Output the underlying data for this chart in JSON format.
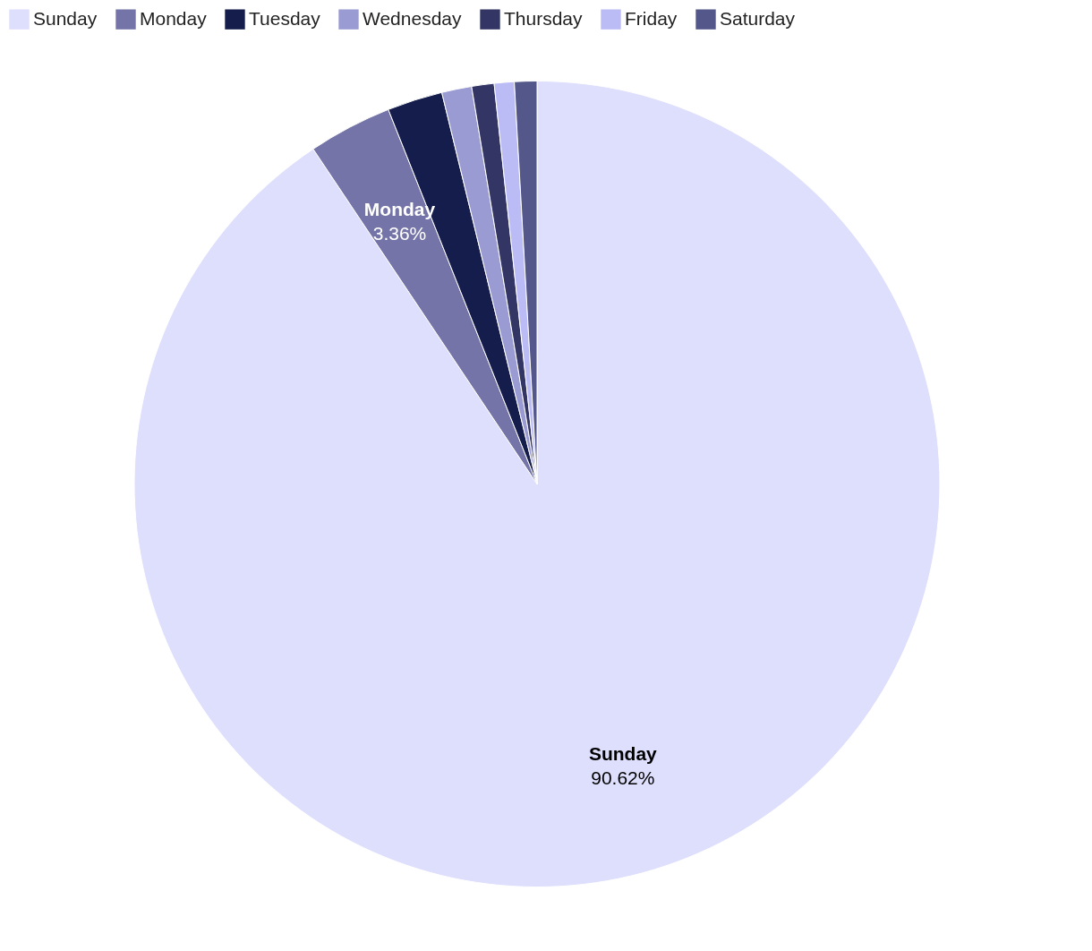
{
  "chart_data": {
    "type": "pie",
    "categories": [
      "Sunday",
      "Monday",
      "Tuesday",
      "Wednesday",
      "Thursday",
      "Friday",
      "Saturday"
    ],
    "values": [
      90.62,
      3.36,
      2.22,
      1.2,
      0.9,
      0.8,
      0.9
    ],
    "colors": [
      "#dedefd",
      "#7474a8",
      "#141d4c",
      "#9b9bd3",
      "#333564",
      "#bbbcf5",
      "#545789"
    ],
    "value_labels": [
      "90.62%",
      "3.36%",
      null,
      null,
      null,
      null,
      null
    ],
    "legend": "top left"
  }
}
